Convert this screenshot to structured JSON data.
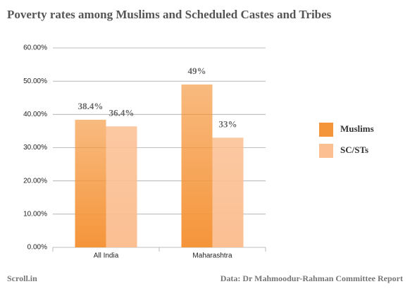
{
  "chart_data": {
    "type": "bar",
    "title": "Poverty rates among Muslims and Scheduled Castes and Tribes",
    "categories": [
      "All India",
      "Maharashtra"
    ],
    "series": [
      {
        "name": "Muslims",
        "color": "#f5953a",
        "values": [
          38.4,
          49
        ],
        "value_labels": [
          "38.4%",
          "49%"
        ]
      },
      {
        "name": "SC/STs",
        "color": "#fbbf92",
        "values": [
          36.4,
          33
        ],
        "value_labels": [
          "36.4%",
          "33%"
        ]
      }
    ],
    "ylim": [
      0,
      60
    ],
    "yticks": [
      {
        "value": 0,
        "label": "0.00%"
      },
      {
        "value": 10,
        "label": "10.00%"
      },
      {
        "value": 20,
        "label": "20.00%"
      },
      {
        "value": 30,
        "label": "30.00%"
      },
      {
        "value": 40,
        "label": "40.00%"
      },
      {
        "value": 50,
        "label": "50.00%"
      },
      {
        "value": 60,
        "label": "60.00%"
      }
    ],
    "grid": true,
    "legend": "right",
    "credit": "Scroll.in",
    "source": "Data: Dr Mahmoodur-Rahman Committee Report"
  }
}
